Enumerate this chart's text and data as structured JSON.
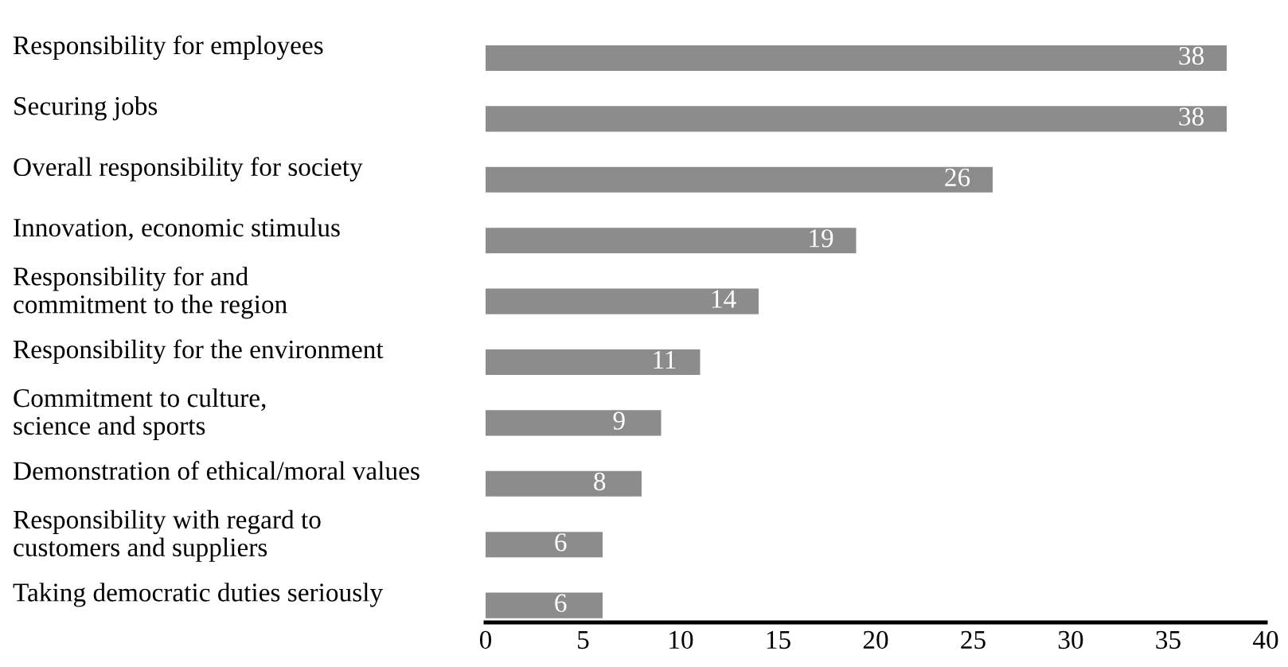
{
  "chart_data": {
    "type": "bar",
    "orientation": "horizontal",
    "categories": [
      "Responsibility for employees",
      "Securing jobs",
      "Overall responsibility for society",
      "Innovation, economic stimulus",
      "Responsibility for and\ncommitment to the region",
      "Responsibility for the environment",
      "Commitment to culture,\nscience and sports",
      "Demonstration of ethical/moral values",
      "Responsibility with regard to\ncustomers and suppliers",
      "Taking democratic duties seriously"
    ],
    "values": [
      38,
      38,
      26,
      19,
      14,
      11,
      9,
      8,
      6,
      6
    ],
    "color": "#8c8c8c",
    "xlim": [
      0,
      40
    ],
    "xticks": [
      0,
      5,
      10,
      15,
      20,
      25,
      30,
      35,
      40
    ],
    "data_labels": true,
    "grid": false
  }
}
